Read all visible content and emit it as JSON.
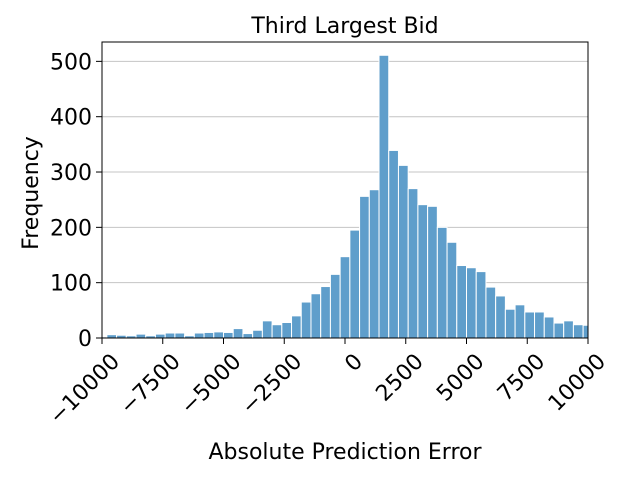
{
  "chart_data": {
    "type": "bar",
    "title": "Third Largest Bid",
    "xlabel": "Absolute Prediction Error",
    "ylabel": "Frequency",
    "xlim": [
      -10000,
      10000
    ],
    "ylim": [
      0,
      535
    ],
    "bin_width": 400,
    "bar_color": "#5f9ecb",
    "edge_color": "#ffffff",
    "grid": "horizontal",
    "xticks": [
      -10000,
      -7500,
      -5000,
      -2500,
      0,
      2500,
      5000,
      7500,
      10000
    ],
    "xtick_labels": [
      "−10000",
      "−7500",
      "−5000",
      "−2500",
      "0",
      "2500",
      "5000",
      "7500",
      "10000"
    ],
    "yticks": [
      0,
      100,
      200,
      300,
      400,
      500
    ],
    "ytick_labels": [
      "0",
      "100",
      "200",
      "300",
      "400",
      "500"
    ],
    "bins": [
      {
        "x0": -10000,
        "count": 2
      },
      {
        "x0": -9800,
        "count": 6
      },
      {
        "x0": -9400,
        "count": 5
      },
      {
        "x0": -9000,
        "count": 4
      },
      {
        "x0": -8600,
        "count": 7
      },
      {
        "x0": -8200,
        "count": 4
      },
      {
        "x0": -7800,
        "count": 7
      },
      {
        "x0": -7400,
        "count": 9
      },
      {
        "x0": -7000,
        "count": 9
      },
      {
        "x0": -6600,
        "count": 4
      },
      {
        "x0": -6200,
        "count": 9
      },
      {
        "x0": -5800,
        "count": 10
      },
      {
        "x0": -5400,
        "count": 11
      },
      {
        "x0": -5000,
        "count": 10
      },
      {
        "x0": -4600,
        "count": 17
      },
      {
        "x0": -4200,
        "count": 8
      },
      {
        "x0": -3800,
        "count": 14
      },
      {
        "x0": -3400,
        "count": 31
      },
      {
        "x0": -3000,
        "count": 24
      },
      {
        "x0": -2600,
        "count": 28
      },
      {
        "x0": -2200,
        "count": 40
      },
      {
        "x0": -1800,
        "count": 65
      },
      {
        "x0": -1400,
        "count": 80
      },
      {
        "x0": -1000,
        "count": 93
      },
      {
        "x0": -600,
        "count": 115
      },
      {
        "x0": -200,
        "count": 147
      },
      {
        "x0": 200,
        "count": 195
      },
      {
        "x0": 600,
        "count": 256
      },
      {
        "x0": 1000,
        "count": 268
      },
      {
        "x0": 1400,
        "count": 511
      },
      {
        "x0": 1800,
        "count": 339
      },
      {
        "x0": 2200,
        "count": 312
      },
      {
        "x0": 2600,
        "count": 270
      },
      {
        "x0": 3000,
        "count": 241
      },
      {
        "x0": 3400,
        "count": 238
      },
      {
        "x0": 3800,
        "count": 200
      },
      {
        "x0": 4200,
        "count": 173
      },
      {
        "x0": 4600,
        "count": 131
      },
      {
        "x0": 5000,
        "count": 127
      },
      {
        "x0": 5400,
        "count": 120
      },
      {
        "x0": 5800,
        "count": 92
      },
      {
        "x0": 6200,
        "count": 76
      },
      {
        "x0": 6600,
        "count": 52
      },
      {
        "x0": 7000,
        "count": 60
      },
      {
        "x0": 7400,
        "count": 47
      },
      {
        "x0": 7800,
        "count": 47
      },
      {
        "x0": 8200,
        "count": 38
      },
      {
        "x0": 8600,
        "count": 27
      },
      {
        "x0": 9000,
        "count": 31
      },
      {
        "x0": 9400,
        "count": 24
      },
      {
        "x0": 9800,
        "count": 23
      }
    ]
  }
}
